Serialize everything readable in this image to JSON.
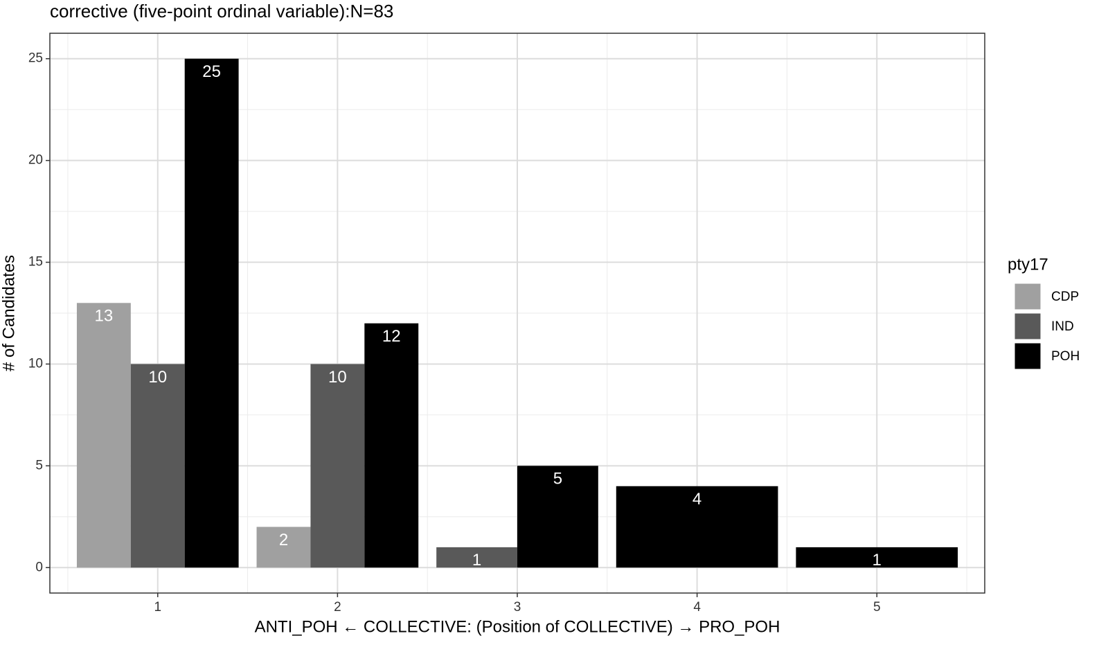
{
  "chart_data": {
    "type": "bar",
    "title": "corrective (five-point ordinal variable):N=83",
    "x_label": "ANTI_POH ← COLLECTIVE: (Position of COLLECTIVE) → PRO_POH",
    "y_label": "# of Candidates",
    "legend_title": "pty17",
    "categories": [
      "1",
      "2",
      "3",
      "4",
      "5"
    ],
    "series": [
      {
        "name": "CDP",
        "color": "#a0a0a0",
        "values": [
          13,
          2,
          null,
          null,
          null
        ]
      },
      {
        "name": "IND",
        "color": "#595959",
        "values": [
          10,
          10,
          1,
          null,
          null
        ]
      },
      {
        "name": "POH",
        "color": "#000000",
        "values": [
          25,
          12,
          5,
          4,
          1
        ]
      }
    ],
    "ylim": [
      -1.25,
      26.25
    ],
    "yticks": [
      0,
      5,
      10,
      15,
      20,
      25
    ],
    "grid": true,
    "legend": "right"
  }
}
